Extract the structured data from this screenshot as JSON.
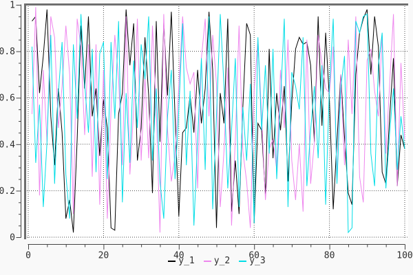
{
  "figure": {
    "page_bg": "#f9f9f9",
    "plot_bg": "#ffffff",
    "frame_color": "#6e6e6e",
    "axis_color": "#444444",
    "grid_color": "#4a4a4a",
    "text_color": "#2e2e2e"
  },
  "chart_data": {
    "type": "line",
    "title": "",
    "xlabel": "",
    "ylabel": "",
    "xlim": [
      0,
      100
    ],
    "ylim": [
      0,
      1
    ],
    "x_major_ticks": [
      0,
      20,
      40,
      60,
      80,
      100
    ],
    "x_tick_labels": [
      "0",
      "20",
      "40",
      "60",
      "80",
      "100"
    ],
    "x_minor_tick_step": 5,
    "y_major_ticks": [
      0,
      0.2,
      0.4,
      0.6,
      0.8,
      1
    ],
    "y_tick_labels": [
      "0",
      "0.2",
      "0.4",
      "0.6",
      "0.8",
      "1"
    ],
    "y_minor_tick_step": 0.05,
    "grid": "dotted black lines at major ticks",
    "legend_position": "bottom-center",
    "x": [
      1,
      2,
      3,
      4,
      5,
      6,
      7,
      8,
      9,
      10,
      11,
      12,
      13,
      14,
      15,
      16,
      17,
      18,
      19,
      20,
      21,
      22,
      23,
      24,
      25,
      26,
      27,
      28,
      29,
      30,
      31,
      32,
      33,
      34,
      35,
      36,
      37,
      38,
      39,
      40,
      41,
      42,
      43,
      44,
      45,
      46,
      47,
      48,
      49,
      50,
      51,
      52,
      53,
      54,
      55,
      56,
      57,
      58,
      59,
      60,
      61,
      62,
      63,
      64,
      65,
      66,
      67,
      68,
      69,
      70,
      71,
      72,
      73,
      74,
      75,
      76,
      77,
      78,
      79,
      80,
      81,
      82,
      83,
      84,
      85,
      86,
      87,
      88,
      89,
      90,
      91,
      92,
      93,
      94,
      95,
      96,
      97,
      98,
      99,
      100
    ],
    "series": [
      {
        "name": "y_1",
        "color": "#000000",
        "values": [
          0.93,
          0.95,
          0.62,
          0.78,
          0.98,
          0.52,
          0.31,
          0.64,
          0.45,
          0.08,
          0.16,
          0.02,
          0.42,
          0.91,
          0.64,
          0.95,
          0.52,
          0.64,
          0.35,
          0.59,
          0.47,
          0.04,
          0.03,
          0.53,
          0.62,
          0.98,
          0.74,
          0.92,
          0.33,
          0.47,
          0.86,
          0.61,
          0.19,
          0.93,
          0.41,
          0.92,
          0.61,
          0.97,
          0.52,
          0.09,
          0.45,
          0.47,
          0.61,
          0.45,
          0.72,
          0.49,
          0.64,
          0.97,
          0.72,
          0.04,
          0.62,
          0.49,
          0.94,
          0.11,
          0.33,
          0.1,
          0.56,
          0.92,
          0.87,
          0.06,
          0.49,
          0.46,
          0.18,
          0.81,
          0.34,
          0.62,
          0.46,
          0.65,
          0.24,
          0.58,
          0.81,
          0.86,
          0.83,
          0.84,
          0.74,
          0.41,
          0.95,
          0.48,
          0.88,
          0.59,
          0.12,
          0.41,
          0.7,
          0.43,
          0.19,
          0.14,
          0.7,
          0.88,
          0.94,
          0.98,
          0.7,
          0.95,
          0.82,
          0.28,
          0.23,
          0.52,
          0.77,
          0.22,
          0.44,
          0.38
        ]
      },
      {
        "name": "y_2",
        "color": "#ee86ee",
        "values": [
          0.53,
          0.99,
          0.18,
          0.72,
          0.41,
          0.95,
          0.86,
          0.47,
          0.65,
          0.91,
          0.7,
          0.1,
          0.94,
          0.82,
          0.44,
          0.83,
          0.26,
          0.83,
          0.14,
          0.72,
          0.08,
          0.55,
          0.87,
          0.68,
          0.31,
          0.95,
          0.27,
          0.55,
          0.94,
          0.33,
          0.69,
          0.34,
          0.91,
          0.55,
          0.02,
          0.96,
          0.46,
          0.24,
          0.35,
          0.65,
          0.95,
          0.73,
          0.66,
          0.71,
          0.21,
          0.77,
          0.94,
          0.52,
          0.87,
          0.66,
          0.13,
          0.37,
          0.73,
          0.05,
          0.42,
          0.91,
          0.37,
          0.24,
          0.04,
          0.63,
          0.85,
          0.52,
          0.16,
          0.38,
          0.42,
          0.29,
          0.72,
          0.47,
          0.85,
          0.33,
          0.16,
          0.4,
          0.11,
          0.85,
          0.23,
          0.41,
          0.87,
          0.75,
          0.64,
          0.62,
          0.82,
          0.25,
          0.7,
          0.31,
          0.85,
          0.53,
          0.95,
          0.26,
          0.15,
          0.76,
          0.81,
          0.63,
          0.52,
          0.87,
          0.36,
          0.66,
          0.96,
          0.22,
          0.75,
          0.42
        ]
      },
      {
        "name": "y_3",
        "color": "#00dde6",
        "values": [
          0.82,
          0.32,
          0.57,
          0.13,
          0.41,
          0.87,
          0.23,
          0.62,
          0.84,
          0.27,
          0.08,
          0.83,
          0.51,
          0.96,
          0.66,
          0.45,
          0.81,
          0.28,
          0.79,
          0.84,
          0.25,
          0.84,
          0.51,
          0.93,
          0.15,
          0.62,
          0.32,
          0.76,
          0.47,
          0.83,
          0.68,
          0.95,
          0.33,
          0.64,
          0.24,
          0.08,
          0.52,
          0.72,
          0.25,
          0.55,
          0.92,
          0.31,
          0.63,
          0.05,
          0.42,
          0.77,
          0.29,
          0.95,
          0.12,
          0.52,
          0.96,
          0.65,
          0.21,
          0.46,
          0.77,
          0.13,
          0.56,
          0.33,
          0.66,
          0.06,
          0.86,
          0.46,
          0.74,
          0.36,
          0.81,
          0.25,
          0.59,
          0.94,
          0.13,
          0.71,
          0.65,
          0.55,
          0.86,
          0.22,
          0.46,
          0.65,
          0.34,
          0.74,
          0.14,
          0.65,
          0.94,
          0.23,
          0.64,
          0.78,
          0.02,
          0.04,
          0.93,
          0.88,
          0.95,
          0.96,
          0.36,
          0.22,
          0.74,
          0.88,
          0.21,
          0.45,
          0.64,
          0.29,
          0.52,
          0.38
        ]
      }
    ]
  }
}
